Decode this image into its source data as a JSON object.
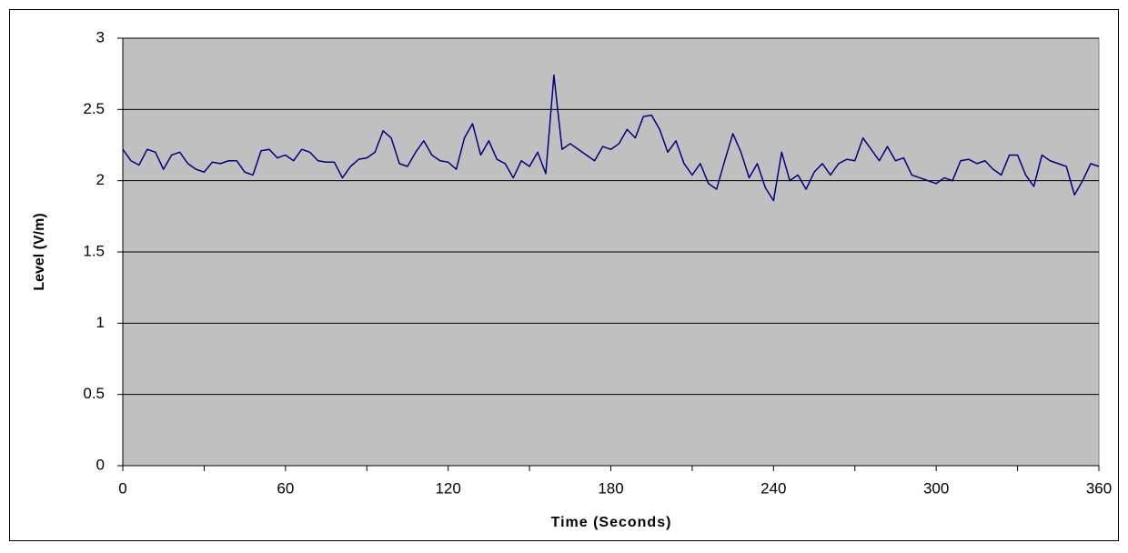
{
  "chart_data": {
    "type": "line",
    "xlabel": "Time (Seconds)",
    "ylabel": "Level (V/m)",
    "x": [
      0,
      3,
      6,
      9,
      12,
      15,
      18,
      21,
      24,
      27,
      30,
      33,
      36,
      39,
      42,
      45,
      48,
      51,
      54,
      57,
      60,
      63,
      66,
      69,
      72,
      75,
      78,
      81,
      84,
      87,
      90,
      93,
      96,
      99,
      102,
      105,
      108,
      111,
      114,
      117,
      120,
      123,
      126,
      129,
      132,
      135,
      138,
      141,
      144,
      147,
      150,
      153,
      156,
      159,
      162,
      165,
      168,
      171,
      174,
      177,
      180,
      183,
      186,
      189,
      192,
      195,
      198,
      201,
      204,
      207,
      210,
      213,
      216,
      219,
      222,
      225,
      228,
      231,
      234,
      237,
      240,
      243,
      246,
      249,
      252,
      255,
      258,
      261,
      264,
      267,
      270,
      273,
      276,
      279,
      282,
      285,
      288,
      291,
      294,
      297,
      300,
      303,
      306,
      309,
      312,
      315,
      318,
      321,
      324,
      327,
      330,
      333,
      336,
      339,
      342,
      345,
      348,
      351,
      354,
      357,
      360
    ],
    "series": [
      {
        "name": "Level",
        "color": "#000080",
        "values": [
          2.22,
          2.14,
          2.11,
          2.22,
          2.2,
          2.08,
          2.18,
          2.2,
          2.12,
          2.08,
          2.06,
          2.13,
          2.12,
          2.14,
          2.14,
          2.06,
          2.04,
          2.21,
          2.22,
          2.16,
          2.18,
          2.14,
          2.22,
          2.2,
          2.14,
          2.13,
          2.13,
          2.02,
          2.1,
          2.15,
          2.16,
          2.2,
          2.35,
          2.3,
          2.12,
          2.1,
          2.2,
          2.28,
          2.18,
          2.14,
          2.13,
          2.08,
          2.3,
          2.4,
          2.18,
          2.28,
          2.15,
          2.12,
          2.02,
          2.14,
          2.1,
          2.2,
          2.05,
          2.74,
          2.22,
          2.26,
          2.22,
          2.18,
          2.14,
          2.24,
          2.22,
          2.26,
          2.36,
          2.3,
          2.45,
          2.46,
          2.36,
          2.2,
          2.28,
          2.12,
          2.04,
          2.12,
          1.98,
          1.94,
          2.14,
          2.33,
          2.2,
          2.02,
          2.12,
          1.95,
          1.86,
          2.2,
          2.0,
          2.04,
          1.94,
          2.06,
          2.12,
          2.04,
          2.12,
          2.15,
          2.14,
          2.3,
          2.22,
          2.14,
          2.24,
          2.14,
          2.16,
          2.04,
          2.02,
          2.0,
          1.98,
          2.02,
          2.0,
          2.14,
          2.15,
          2.12,
          2.14,
          2.08,
          2.04,
          2.18,
          2.18,
          2.04,
          1.96,
          2.18,
          2.14,
          2.12,
          2.1,
          1.9,
          2.0,
          2.12,
          2.1
        ]
      }
    ],
    "xlim": [
      0,
      360
    ],
    "xticks": [
      0,
      60,
      120,
      180,
      240,
      300,
      360
    ],
    "ylim": [
      0,
      3
    ],
    "yticks": [
      0,
      0.5,
      1,
      1.5,
      2,
      2.5,
      3
    ],
    "grid": true,
    "plot_background": "#c0c0c0"
  }
}
